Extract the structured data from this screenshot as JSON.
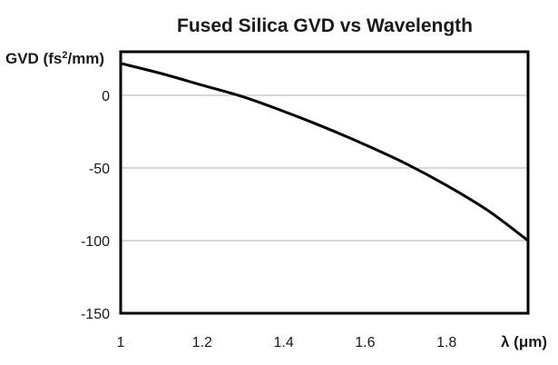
{
  "chart_data": {
    "type": "line",
    "title": "Fused Silica GVD vs Wavelength",
    "xlabel": "λ (μm)",
    "ylabel_main": "GVD (fs",
    "ylabel_sup": "2",
    "ylabel_tail": "/mm)",
    "xlim": [
      1.0,
      2.0
    ],
    "ylim": [
      -150,
      30
    ],
    "xticks": [
      1.0,
      1.2,
      1.4,
      1.6,
      1.8
    ],
    "xtick_labels": [
      "1",
      "1.2",
      "1.4",
      "1.6",
      "1.8"
    ],
    "yticks": [
      0,
      -50,
      -100,
      -150
    ],
    "ytick_labels": [
      "0",
      "-50",
      "-100",
      "-150"
    ],
    "grid": "horizontal",
    "series": [
      {
        "color": "#000000",
        "x": [
          1.0,
          1.1,
          1.2,
          1.3,
          1.4,
          1.5,
          1.6,
          1.7,
          1.8,
          1.9,
          2.0
        ],
        "y": [
          22,
          15,
          7,
          -1,
          -11,
          -22,
          -34,
          -47,
          -62,
          -79,
          -100
        ]
      }
    ]
  }
}
